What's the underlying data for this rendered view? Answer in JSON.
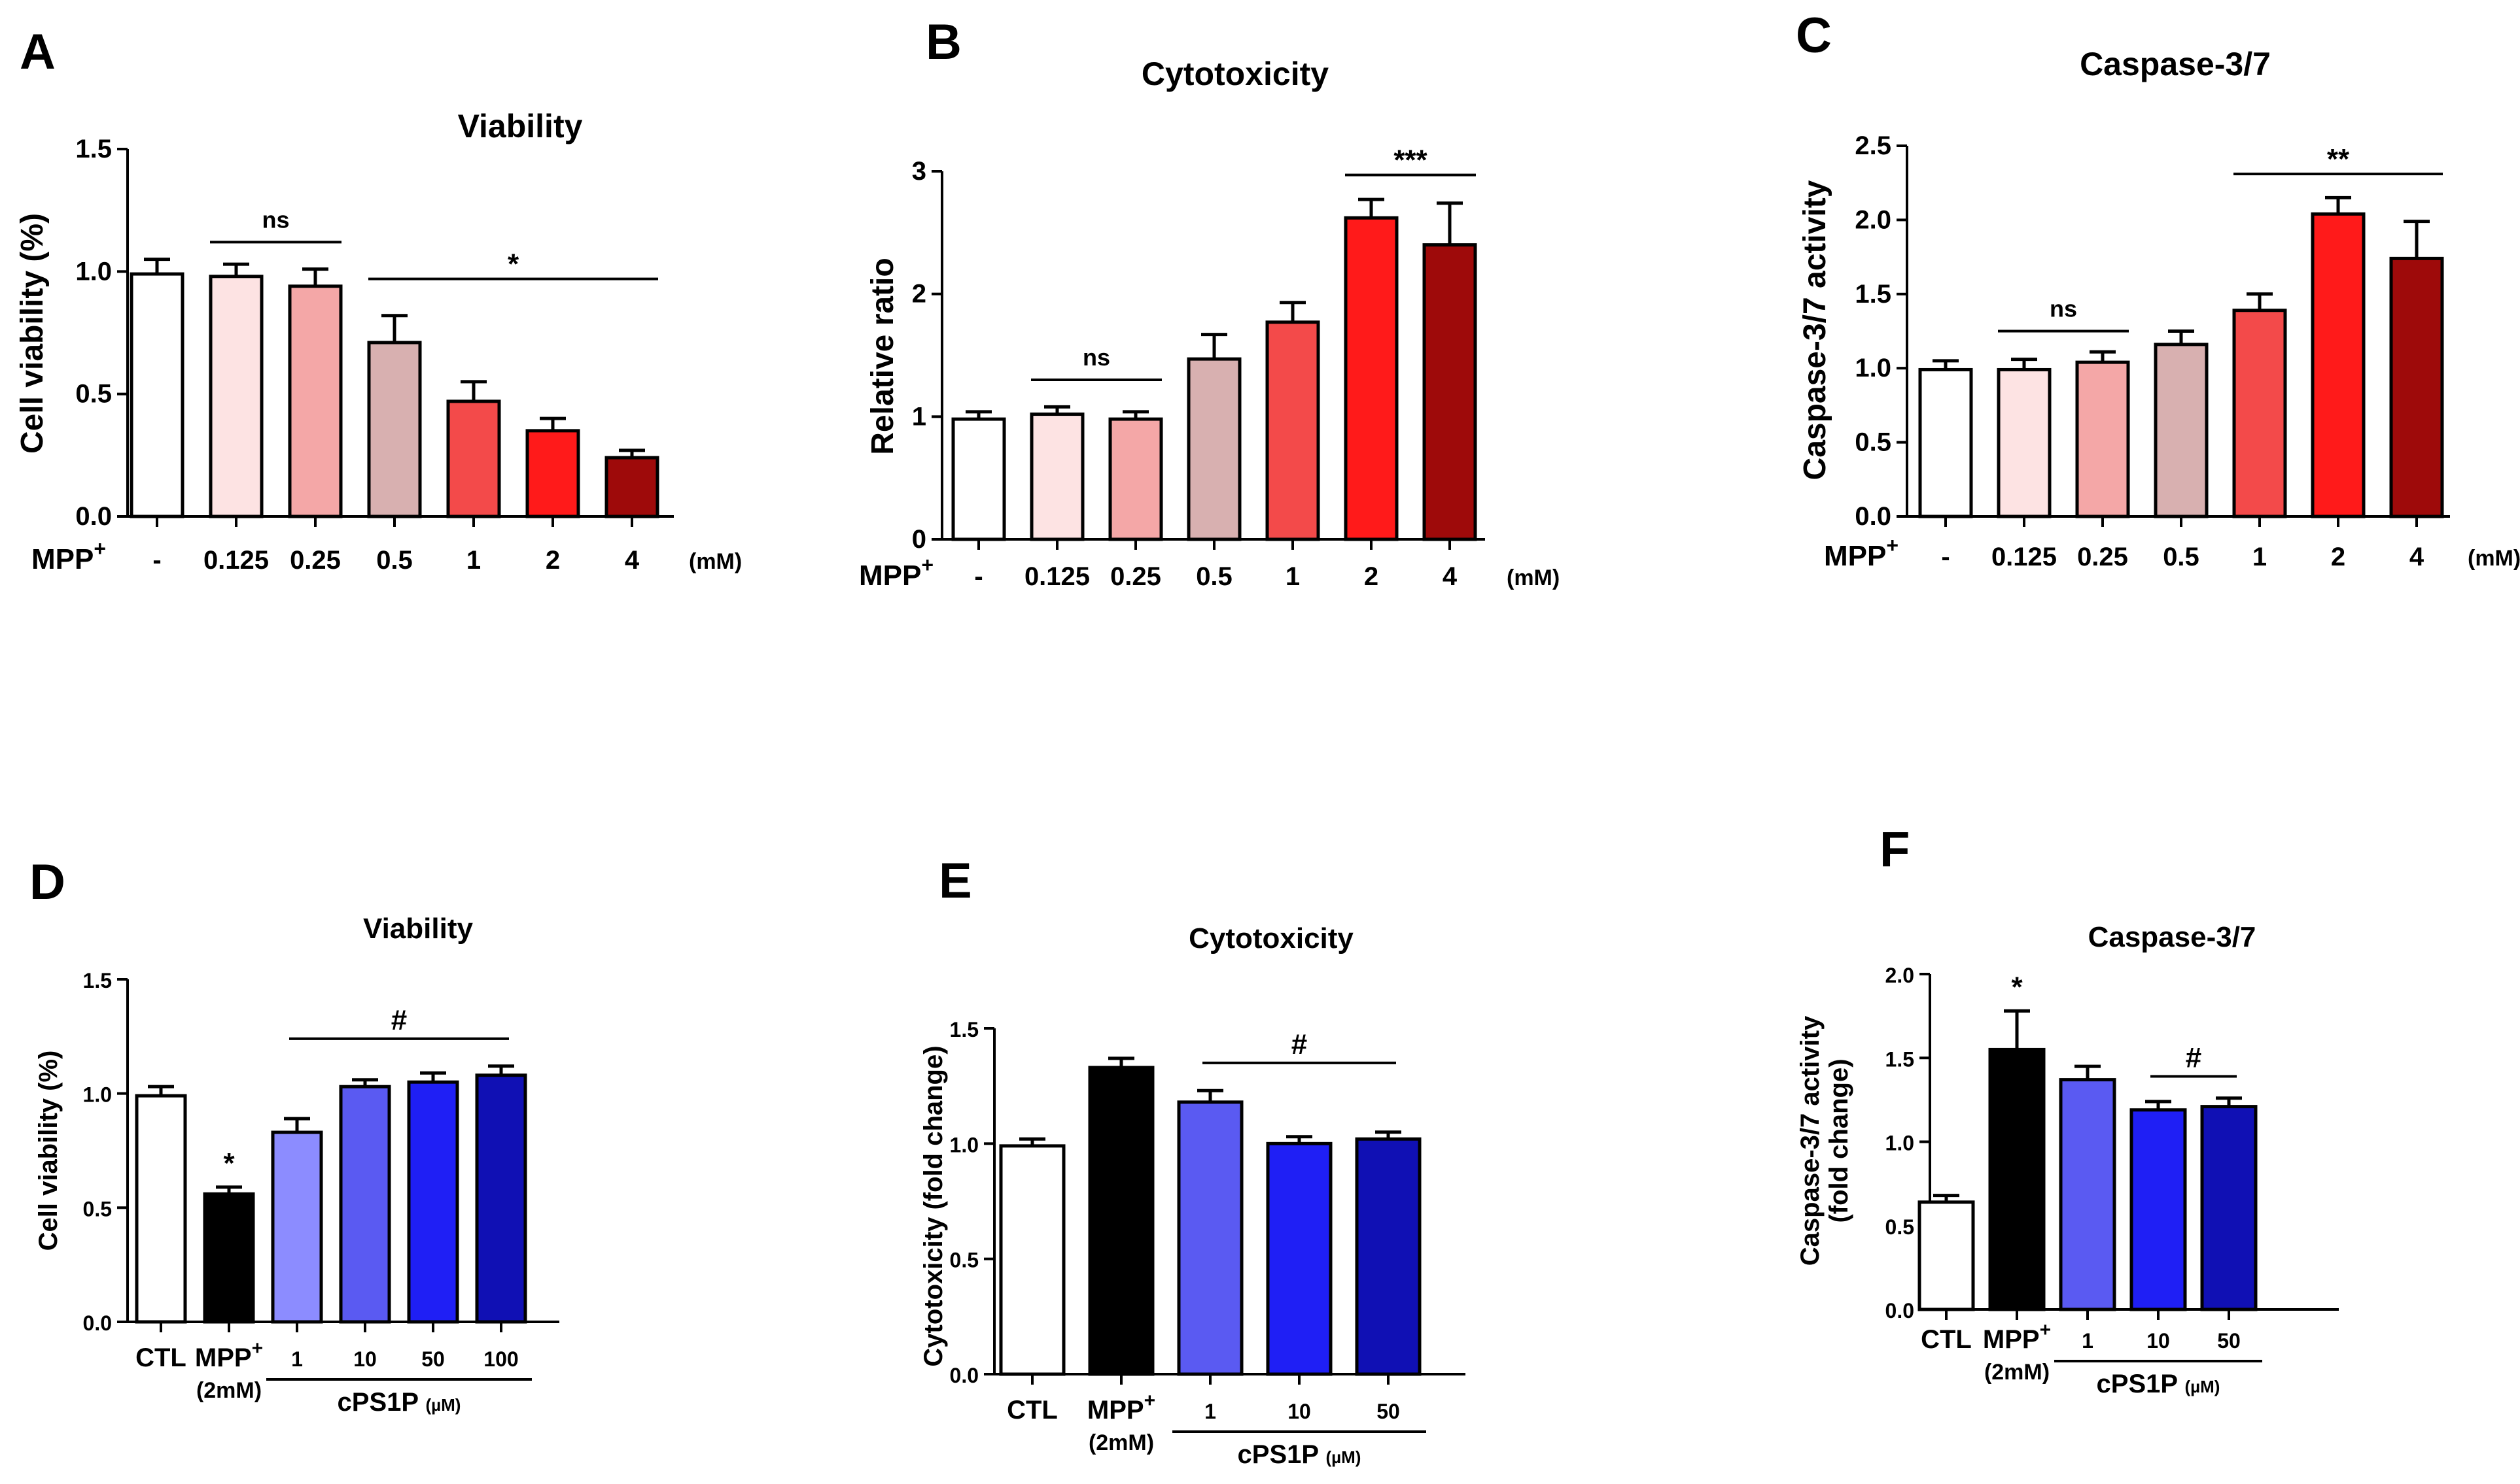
{
  "chart_data": [
    {
      "id": "A",
      "panel_label": "A",
      "type": "bar",
      "title": "Viability",
      "ylabel": "Cell viability (%)",
      "ylim": [
        0,
        1.5
      ],
      "yticks": [
        "0.0",
        "0.5",
        "1.0",
        "1.5"
      ],
      "treatment_label": "MPP",
      "treatment_sup": "+",
      "categories": [
        "-",
        "0.125",
        "0.25",
        "0.5",
        "1",
        "2",
        "4"
      ],
      "unit": "(mM)",
      "values": [
        0.99,
        0.98,
        0.94,
        0.71,
        0.47,
        0.35,
        0.24
      ],
      "errors": [
        0.06,
        0.05,
        0.07,
        0.11,
        0.08,
        0.05,
        0.03
      ],
      "colors": [
        "#ffffff",
        "#fde3e3",
        "#f4a7a7",
        "#d8b0b0",
        "#f34a4a",
        "#ff1a1a",
        "#9e0a0a"
      ],
      "sig_lines": [
        {
          "from": 1,
          "to": 2,
          "y": 1.12,
          "label": "ns"
        },
        {
          "from": 3,
          "to": 6,
          "y": 0.97,
          "label": "*"
        }
      ]
    },
    {
      "id": "B",
      "panel_label": "B",
      "type": "bar",
      "title": "Cytotoxicity",
      "ylabel": "Relative ratio",
      "ylim": [
        0,
        3
      ],
      "yticks": [
        "0",
        "1",
        "2",
        "3"
      ],
      "treatment_label": "MPP",
      "treatment_sup": "+",
      "categories": [
        "-",
        "0.125",
        "0.25",
        "0.5",
        "1",
        "2",
        "4"
      ],
      "unit": "(mM)",
      "values": [
        0.98,
        1.02,
        0.98,
        1.47,
        1.77,
        2.62,
        2.4
      ],
      "errors": [
        0.06,
        0.06,
        0.06,
        0.2,
        0.16,
        0.15,
        0.34
      ],
      "colors": [
        "#ffffff",
        "#fde3e3",
        "#f4a7a7",
        "#d8b0b0",
        "#f34a4a",
        "#ff1a1a",
        "#9e0a0a"
      ],
      "sig_lines": [
        {
          "from": 1,
          "to": 2,
          "y": 1.3,
          "label": "ns"
        },
        {
          "from": 5,
          "to": 6,
          "y": 2.97,
          "label": "***"
        }
      ]
    },
    {
      "id": "C",
      "panel_label": "C",
      "type": "bar",
      "title": "Caspase-3/7",
      "ylabel": "Caspase-3/7 activity",
      "ylim": [
        0,
        2.5
      ],
      "yticks": [
        "0.0",
        "0.5",
        "1.0",
        "1.5",
        "2.0",
        "2.5"
      ],
      "treatment_label": "MPP",
      "treatment_sup": "+",
      "categories": [
        "-",
        "0.125",
        "0.25",
        "0.5",
        "1",
        "2",
        "4"
      ],
      "unit": "(mM)",
      "values": [
        0.99,
        0.99,
        1.04,
        1.16,
        1.39,
        2.04,
        1.74
      ],
      "errors": [
        0.06,
        0.07,
        0.07,
        0.09,
        0.11,
        0.11,
        0.25
      ],
      "colors": [
        "#ffffff",
        "#fde3e3",
        "#f4a7a7",
        "#d8b0b0",
        "#f34a4a",
        "#ff1a1a",
        "#9e0a0a"
      ],
      "sig_lines": [
        {
          "from": 1,
          "to": 2,
          "y": 1.25,
          "label": "ns"
        },
        {
          "from": 4,
          "to": 6,
          "y": 2.31,
          "label": "**"
        }
      ]
    },
    {
      "id": "D",
      "panel_label": "D",
      "type": "bar",
      "title": "Viability",
      "ylabel": "Cell viability (%)",
      "ylim": [
        0,
        1.5
      ],
      "yticks": [
        "0.0",
        "0.5",
        "1.0",
        "1.5"
      ],
      "categories": [
        "CTL",
        "MPP+ (2mM)",
        "1",
        "10",
        "50",
        "100"
      ],
      "group_label": "cPS1P",
      "group_unit": "(µM)",
      "group_from": 2,
      "group_to": 5,
      "mpp_label": "MPP",
      "mpp_sup": "+",
      "mpp_sub": "(2mM)",
      "values": [
        0.99,
        0.56,
        0.83,
        1.03,
        1.05,
        1.08
      ],
      "errors": [
        0.04,
        0.03,
        0.06,
        0.03,
        0.04,
        0.04
      ],
      "colors": [
        "#ffffff",
        "#000000",
        "#8c8cff",
        "#5a5af2",
        "#1f1ff5",
        "#1010b4"
      ],
      "bar_marks": [
        {
          "index": 1,
          "label": "*"
        }
      ],
      "sig_lines": [
        {
          "from": 2,
          "to": 5,
          "y": 1.24,
          "label": "#"
        }
      ]
    },
    {
      "id": "E",
      "panel_label": "E",
      "type": "bar",
      "title": "Cytotoxicity",
      "ylabel": "Cytotoxicity (fold change)",
      "ylim": [
        0,
        1.5
      ],
      "yticks": [
        "0.0",
        "0.5",
        "1.0",
        "1.5"
      ],
      "categories": [
        "CTL",
        "MPP+ (2mM)",
        "1",
        "10",
        "50"
      ],
      "group_label": "cPS1P",
      "group_unit": "(µM)",
      "group_from": 2,
      "group_to": 4,
      "mpp_label": "MPP",
      "mpp_sup": "+",
      "mpp_sub": "(2mM)",
      "values": [
        0.99,
        1.33,
        1.18,
        1.0,
        1.02
      ],
      "errors": [
        0.03,
        0.04,
        0.05,
        0.03,
        0.03
      ],
      "colors": [
        "#ffffff",
        "#000000",
        "#5a5af2",
        "#1f1ff5",
        "#1010b4"
      ],
      "bar_marks": [],
      "sig_lines": [
        {
          "from": 2,
          "to": 4,
          "y": 1.35,
          "label": "#"
        }
      ]
    },
    {
      "id": "F",
      "panel_label": "F",
      "type": "bar",
      "title": "Caspase-3/7",
      "ylabel": [
        "Caspase-3/7 activity",
        "(fold change)"
      ],
      "ylim": [
        0,
        2.0
      ],
      "yticks": [
        "0.0",
        "0.5",
        "1.0",
        "1.5",
        "2.0"
      ],
      "categories": [
        "CTL",
        "MPP+ (2mM)",
        "1",
        "10",
        "50"
      ],
      "group_label": "cPS1P",
      "group_unit": "(µM)",
      "group_from": 2,
      "group_to": 4,
      "mpp_label": "MPP",
      "mpp_sup": "+",
      "mpp_sub": "(2mM)",
      "values": [
        0.64,
        1.55,
        1.37,
        1.19,
        1.21
      ],
      "errors": [
        0.04,
        0.23,
        0.08,
        0.05,
        0.05
      ],
      "colors": [
        "#ffffff",
        "#000000",
        "#5a5af2",
        "#1f1ff5",
        "#1010b4"
      ],
      "bar_marks": [
        {
          "index": 1,
          "label": "*"
        }
      ],
      "sig_lines": [
        {
          "from": 3,
          "to": 4,
          "y": 1.39,
          "label": "#"
        }
      ]
    }
  ]
}
